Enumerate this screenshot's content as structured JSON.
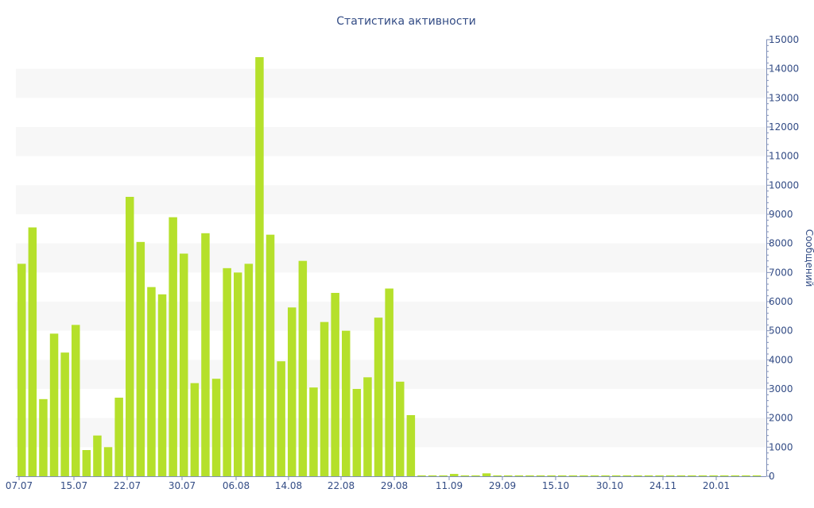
{
  "chart_data": {
    "type": "bar",
    "title": "Статистика активности",
    "ylabel": "Сообщений",
    "ylim": [
      0,
      15000
    ],
    "y_ticks": [
      "0",
      "1000",
      "2000",
      "3000",
      "4000",
      "5000",
      "6000",
      "7000",
      "8000",
      "9000",
      "10000",
      "11000",
      "12000",
      "13000",
      "14000",
      "15000"
    ],
    "x_tick_labels": [
      "07.07",
      "15.07",
      "22.07",
      "30.07",
      "06.08",
      "14.08",
      "22.08",
      "29.08",
      "11.09",
      "29.09",
      "15.10",
      "30.10",
      "24.11",
      "20.01"
    ],
    "values": [
      7300,
      8550,
      2650,
      4900,
      4250,
      5200,
      900,
      1400,
      1000,
      2700,
      9600,
      8050,
      6500,
      6250,
      8900,
      7650,
      3200,
      8350,
      3350,
      7150,
      7000,
      7300,
      14400,
      8300,
      3950,
      5800,
      7400,
      3050,
      5300,
      6300,
      5000,
      3000,
      3400,
      5450,
      6450,
      3250,
      2100,
      30,
      30,
      30,
      80,
      30,
      30,
      100,
      30,
      30,
      30,
      30,
      30,
      30,
      30,
      30,
      30,
      30,
      30,
      30,
      30,
      30,
      30,
      30,
      30,
      30,
      30,
      30,
      30,
      30,
      30,
      30,
      30
    ],
    "colors": {
      "bar": "#b5e02b",
      "text": "#334c85",
      "band": "#f7f7f7",
      "axis": "#7f8fb8"
    },
    "grid": "alternating-bands",
    "y_axis_position": "right"
  }
}
